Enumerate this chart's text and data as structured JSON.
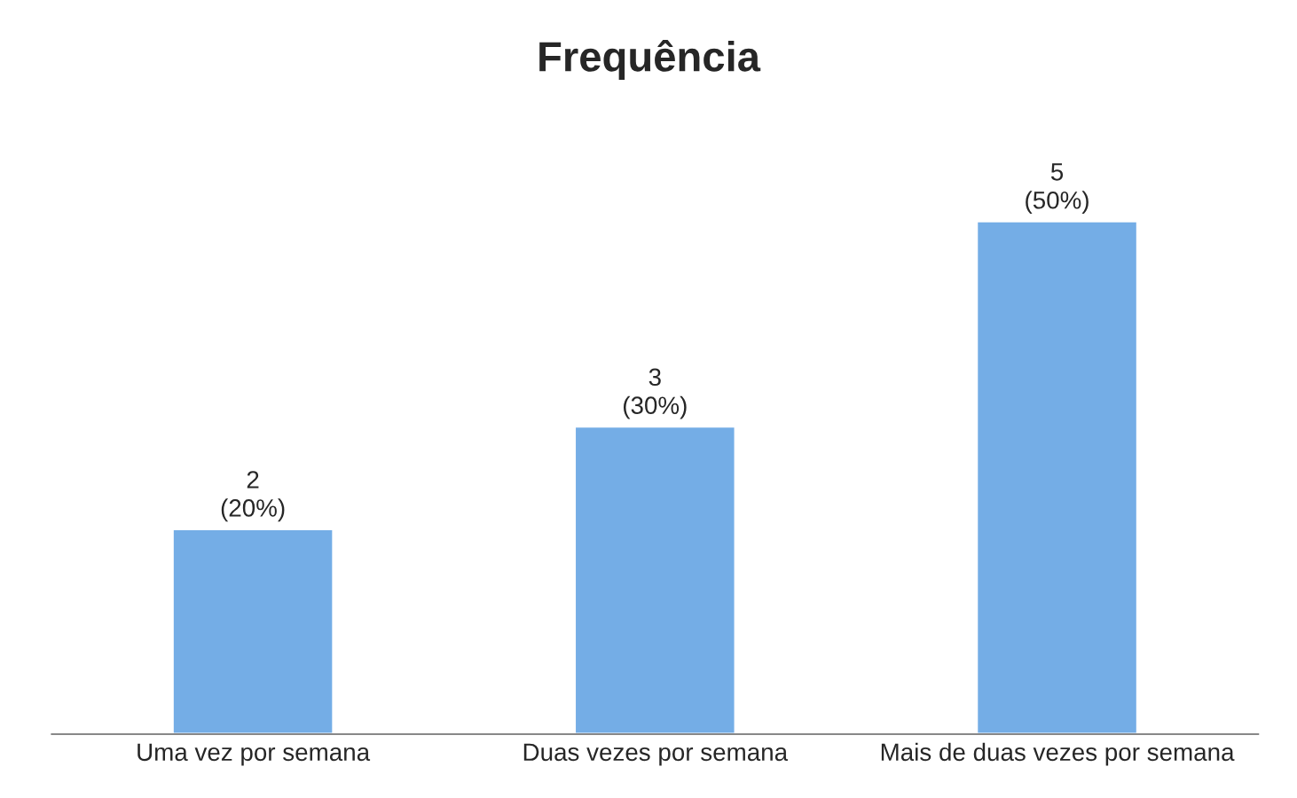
{
  "chart_data": {
    "type": "bar",
    "title": "Frequência",
    "categories": [
      "Uma vez por semana",
      "Duas vezes por semana",
      "Mais de duas vezes por semana"
    ],
    "values": [
      2,
      3,
      5
    ],
    "value_labels": [
      "2\n(20%)",
      "3\n(30%)",
      "5\n(50%)"
    ],
    "color": "#74ade6",
    "grid": false,
    "legend": false
  }
}
